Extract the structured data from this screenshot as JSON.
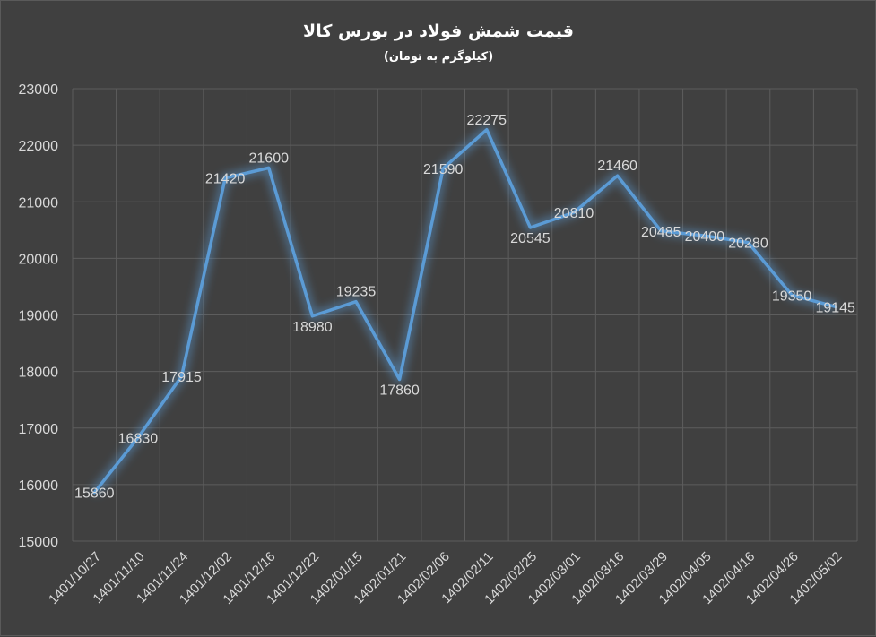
{
  "chart_data": {
    "type": "line",
    "title": "قیمت شمش فولاد در بورس کالا",
    "subtitle": "(کیلوگرم به تومان)",
    "categories": [
      "1401/10/27",
      "1401/11/10",
      "1401/11/24",
      "1401/12/02",
      "1401/12/16",
      "1401/12/22",
      "1402/01/15",
      "1402/01/21",
      "1402/02/06",
      "1402/02/11",
      "1402/02/25",
      "1402/03/01",
      "1402/03/16",
      "1402/03/29",
      "1402/04/05",
      "1402/04/16",
      "1402/04/26",
      "1402/05/02"
    ],
    "series": [
      {
        "values": [
          15860,
          16830,
          17915,
          21420,
          21600,
          18980,
          19235,
          17860,
          21590,
          22275,
          20545,
          20810,
          21460,
          20485,
          20400,
          20280,
          19350,
          19145
        ]
      }
    ],
    "ylim": [
      15000,
      23000
    ],
    "yticks": [
      15000,
      16000,
      17000,
      18000,
      19000,
      20000,
      21000,
      22000,
      23000
    ],
    "grid": true,
    "line_color": "#5b9bd5",
    "background_color": "#404040"
  }
}
